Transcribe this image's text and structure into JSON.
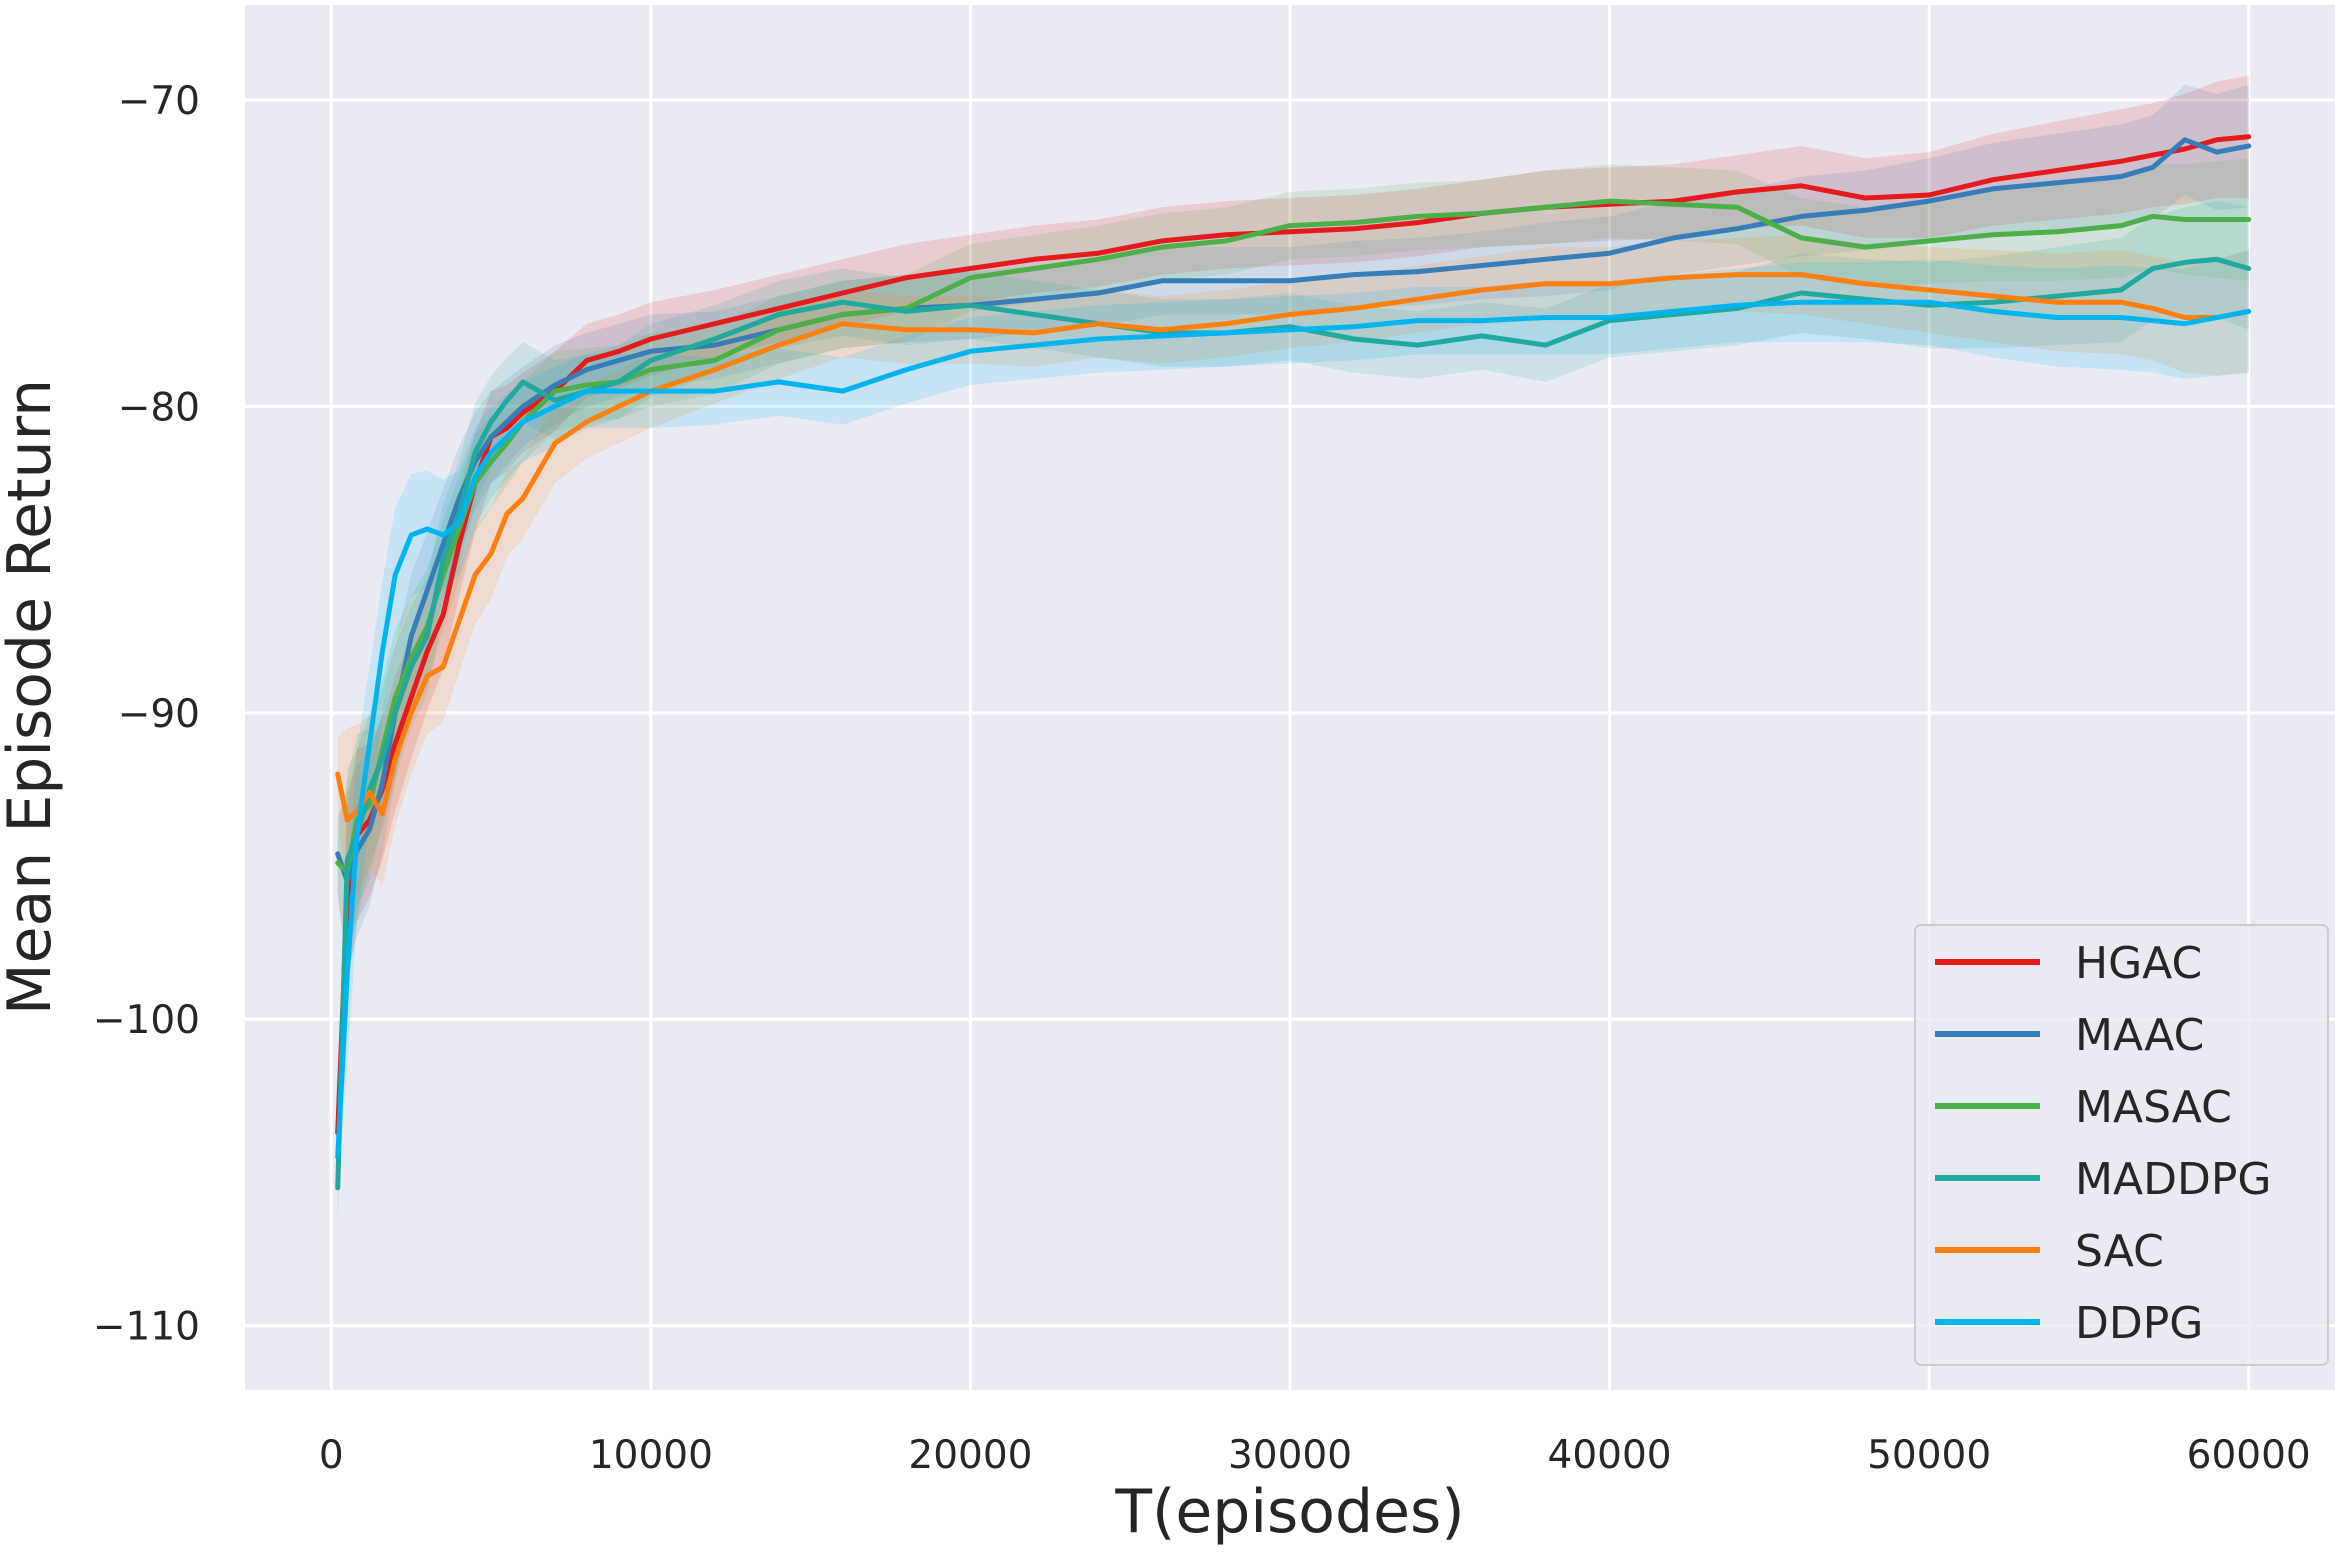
{
  "chart_data": {
    "type": "line",
    "title": "",
    "xlabel": "T(episodes)",
    "ylabel": "Mean Episode Return",
    "xlim": [
      -2700,
      62700
    ],
    "ylim": [
      -112.1,
      -66.9
    ],
    "xticks": [
      0,
      10000,
      20000,
      30000,
      40000,
      50000,
      60000
    ],
    "xtick_labels": [
      "0",
      "10000",
      "20000",
      "30000",
      "40000",
      "50000",
      "60000"
    ],
    "yticks": [
      -110,
      -100,
      -90,
      -80,
      -70
    ],
    "ytick_labels": [
      "−110",
      "−100",
      "−90",
      "−80",
      "−70"
    ],
    "grid": true,
    "background": "#eaeaf2",
    "legend_position": "bottom-right",
    "series": [
      {
        "name": "HGAC",
        "color": "#e41a1c",
        "x": [
          200,
          500,
          800,
          1200,
          1600,
          2000,
          2500,
          3000,
          3500,
          4000,
          4500,
          5000,
          5500,
          6000,
          7000,
          8000,
          9000,
          10000,
          12000,
          14000,
          16000,
          18000,
          20000,
          22000,
          24000,
          26000,
          28000,
          30000,
          32000,
          34000,
          36000,
          38000,
          40000,
          42000,
          44000,
          46000,
          48000,
          50000,
          52000,
          54000,
          56000,
          57000,
          58000,
          59000,
          60000
        ],
        "y": [
          -103.7,
          -96,
          -94,
          -93.5,
          -92.5,
          -91,
          -89.5,
          -88,
          -86.8,
          -84.5,
          -82.5,
          -81,
          -80.7,
          -80.2,
          -79.5,
          -78.5,
          -78.2,
          -77.8,
          -77.3,
          -76.8,
          -76.3,
          -75.8,
          -75.5,
          -75.2,
          -75,
          -74.6,
          -74.4,
          -74.3,
          -74.2,
          -74,
          -73.7,
          -73.5,
          -73.4,
          -73.3,
          -73,
          -72.8,
          -73.2,
          -73.1,
          -72.6,
          -72.3,
          -72,
          -71.8,
          -71.6,
          -71.3,
          -71.2
        ],
        "band": [
          1.2,
          3,
          2.8,
          2.5,
          2.3,
          2.2,
          2,
          1.9,
          1.8,
          1.7,
          1.6,
          1.5,
          1.4,
          1.3,
          1.3,
          1.2,
          1.2,
          1.2,
          1.1,
          1.1,
          1.1,
          1.1,
          1.1,
          1.1,
          1.1,
          1.1,
          1.1,
          1.1,
          1.1,
          1.1,
          1.1,
          1.2,
          1.2,
          1.2,
          1.2,
          1.3,
          1.3,
          1.4,
          1.5,
          1.6,
          1.7,
          1.7,
          1.8,
          1.9,
          2
        ]
      },
      {
        "name": "MAAC",
        "color": "#377eb8",
        "x": [
          200,
          500,
          800,
          1200,
          1600,
          2000,
          2500,
          3000,
          3500,
          4000,
          4500,
          5000,
          5500,
          6000,
          7000,
          8000,
          9000,
          10000,
          12000,
          14000,
          16000,
          18000,
          20000,
          22000,
          24000,
          26000,
          28000,
          30000,
          32000,
          34000,
          36000,
          38000,
          40000,
          42000,
          44000,
          46000,
          48000,
          50000,
          52000,
          54000,
          56000,
          57000,
          58000,
          59000,
          60000
        ],
        "y": [
          -94.6,
          -95.5,
          -94.5,
          -93.8,
          -92.3,
          -90,
          -87.5,
          -86,
          -84.5,
          -83,
          -81.8,
          -81,
          -80.5,
          -80,
          -79.3,
          -78.8,
          -78.5,
          -78.2,
          -78,
          -77.5,
          -77,
          -76.8,
          -76.7,
          -76.5,
          -76.3,
          -75.9,
          -75.9,
          -75.9,
          -75.7,
          -75.6,
          -75.4,
          -75.2,
          -75,
          -74.5,
          -74.2,
          -73.8,
          -73.6,
          -73.3,
          -72.9,
          -72.7,
          -72.5,
          -72.2,
          -71.3,
          -71.7,
          -71.5
        ],
        "band": [
          1.2,
          3,
          2.8,
          2.5,
          2.3,
          2.2,
          2,
          1.9,
          1.8,
          1.7,
          1.6,
          1.5,
          1.4,
          1.3,
          1.3,
          1.2,
          1.2,
          1.2,
          1.1,
          1.1,
          1.1,
          1.1,
          1.1,
          1.1,
          1.1,
          1.1,
          1.1,
          1.1,
          1.1,
          1.1,
          1.1,
          1.2,
          1.2,
          1.2,
          1.2,
          1.3,
          1.3,
          1.4,
          1.5,
          1.6,
          1.7,
          1.7,
          1.8,
          1.9,
          2
        ]
      },
      {
        "name": "MASAC",
        "color": "#4daf4a",
        "x": [
          200,
          500,
          800,
          1200,
          1600,
          2000,
          2500,
          3000,
          3500,
          4000,
          4500,
          5000,
          5500,
          6000,
          7000,
          8000,
          9000,
          10000,
          12000,
          14000,
          16000,
          18000,
          20000,
          22000,
          24000,
          26000,
          28000,
          30000,
          32000,
          34000,
          36000,
          38000,
          40000,
          42000,
          44000,
          46000,
          48000,
          50000,
          52000,
          54000,
          56000,
          57000,
          58000,
          59000,
          60000
        ],
        "y": [
          -94.9,
          -95.2,
          -93.5,
          -93,
          -91.2,
          -89.5,
          -88.2,
          -87.2,
          -85.5,
          -84,
          -82.5,
          -81.8,
          -81.2,
          -80.5,
          -79.5,
          -79.3,
          -79.2,
          -78.8,
          -78.5,
          -77.5,
          -77,
          -76.8,
          -75.8,
          -75.5,
          -75.2,
          -74.8,
          -74.6,
          -74.1,
          -74,
          -73.8,
          -73.7,
          -73.5,
          -73.3,
          -73.4,
          -73.5,
          -74.5,
          -74.8,
          -74.6,
          -74.4,
          -74.3,
          -74.1,
          -73.8,
          -73.9,
          -73.9,
          -73.9
        ],
        "band": [
          1.2,
          3,
          2.8,
          2.5,
          2.3,
          2.2,
          2,
          1.9,
          1.8,
          1.7,
          1.6,
          1.5,
          1.4,
          1.3,
          1.3,
          1.2,
          1.2,
          1.2,
          1.1,
          1.1,
          1.1,
          1.1,
          1.1,
          1.1,
          1.1,
          1.1,
          1.1,
          1.1,
          1.1,
          1.1,
          1.1,
          1.2,
          1.2,
          1.2,
          1.2,
          1.3,
          1.3,
          1.4,
          1.5,
          1.6,
          1.7,
          1.7,
          1.8,
          1.9,
          2
        ]
      },
      {
        "name": "MADDPG",
        "color": "#20a99c",
        "x": [
          200,
          500,
          800,
          1200,
          1600,
          2000,
          2500,
          3000,
          3500,
          4000,
          4500,
          5000,
          5500,
          6000,
          7000,
          8000,
          9000,
          10000,
          12000,
          14000,
          16000,
          18000,
          20000,
          22000,
          24000,
          26000,
          28000,
          30000,
          32000,
          34000,
          36000,
          38000,
          40000,
          42000,
          44000,
          46000,
          48000,
          50000,
          52000,
          54000,
          56000,
          57000,
          58000,
          59000,
          60000
        ],
        "y": [
          -105.5,
          -94.8,
          -94,
          -92.5,
          -91.5,
          -90,
          -88.5,
          -87.5,
          -85,
          -83.5,
          -81.5,
          -80.5,
          -79.8,
          -79.2,
          -79.8,
          -79.5,
          -79.2,
          -78.5,
          -77.8,
          -77,
          -76.6,
          -76.9,
          -76.7,
          -77,
          -77.3,
          -77.6,
          -77.6,
          -77.4,
          -77.8,
          -78,
          -77.7,
          -78,
          -77.2,
          -77,
          -76.8,
          -76.3,
          -76.5,
          -76.7,
          -76.6,
          -76.4,
          -76.2,
          -75.5,
          -75.3,
          -75.2,
          -75.5
        ],
        "band": [
          1.2,
          3,
          2.8,
          2.5,
          2.3,
          2.2,
          2,
          1.9,
          1.8,
          1.7,
          1.6,
          1.5,
          1.4,
          1.3,
          1.3,
          1.2,
          1.2,
          1.2,
          1.1,
          1.1,
          1.1,
          1.1,
          1.1,
          1.1,
          1.1,
          1.1,
          1.1,
          1.1,
          1.1,
          1.1,
          1.1,
          1.2,
          1.2,
          1.2,
          1.2,
          1.3,
          1.3,
          1.4,
          1.5,
          1.6,
          1.7,
          1.7,
          1.8,
          1.9,
          2
        ]
      },
      {
        "name": "SAC",
        "color": "#ff7f0e",
        "x": [
          200,
          500,
          800,
          1200,
          1600,
          2000,
          2500,
          3000,
          3500,
          4000,
          4500,
          5000,
          5500,
          6000,
          7000,
          8000,
          9000,
          10000,
          12000,
          14000,
          16000,
          18000,
          20000,
          22000,
          24000,
          26000,
          28000,
          30000,
          32000,
          34000,
          36000,
          38000,
          40000,
          42000,
          44000,
          46000,
          48000,
          50000,
          52000,
          54000,
          56000,
          57000,
          58000,
          59000,
          60000
        ],
        "y": [
          -92,
          -93.5,
          -93.2,
          -92.6,
          -93.3,
          -91.5,
          -90,
          -88.8,
          -88.5,
          -87,
          -85.5,
          -84.8,
          -83.5,
          -83,
          -81.2,
          -80.5,
          -80,
          -79.5,
          -78.8,
          -78,
          -77.3,
          -77.5,
          -77.5,
          -77.6,
          -77.3,
          -77.5,
          -77.3,
          -77,
          -76.8,
          -76.5,
          -76.2,
          -76,
          -76,
          -75.8,
          -75.7,
          -75.7,
          -76,
          -76.2,
          -76.4,
          -76.6,
          -76.6,
          -76.8,
          -77.1,
          -77.1,
          -76.9
        ],
        "band": [
          1.2,
          3,
          2.8,
          2.5,
          2.3,
          2.2,
          2,
          1.9,
          1.8,
          1.7,
          1.6,
          1.5,
          1.4,
          1.3,
          1.3,
          1.2,
          1.2,
          1.2,
          1.1,
          1.1,
          1.1,
          1.1,
          1.1,
          1.1,
          1.1,
          1.1,
          1.1,
          1.1,
          1.1,
          1.1,
          1.1,
          1.2,
          1.2,
          1.2,
          1.2,
          1.3,
          1.3,
          1.4,
          1.5,
          1.6,
          1.7,
          1.7,
          1.8,
          1.9,
          2
        ]
      },
      {
        "name": "DDPG",
        "color": "#00b4f0",
        "x": [
          200,
          500,
          800,
          1200,
          1600,
          2000,
          2500,
          3000,
          3500,
          4000,
          4500,
          5000,
          5500,
          6000,
          7000,
          8000,
          9000,
          10000,
          12000,
          14000,
          16000,
          18000,
          20000,
          22000,
          24000,
          26000,
          28000,
          30000,
          32000,
          34000,
          36000,
          38000,
          40000,
          42000,
          44000,
          46000,
          48000,
          50000,
          52000,
          54000,
          56000,
          57000,
          58000,
          59000,
          60000
        ],
        "y": [
          -104.5,
          -98.5,
          -94,
          -91,
          -88,
          -85.5,
          -84.2,
          -84,
          -84.2,
          -83.8,
          -82.3,
          -81.5,
          -81,
          -80.5,
          -80,
          -79.5,
          -79.5,
          -79.5,
          -79.5,
          -79.2,
          -79.5,
          -78.8,
          -78.2,
          -78,
          -77.8,
          -77.7,
          -77.6,
          -77.5,
          -77.4,
          -77.2,
          -77.2,
          -77.1,
          -77.1,
          -76.9,
          -76.7,
          -76.6,
          -76.6,
          -76.6,
          -76.9,
          -77.1,
          -77.1,
          -77.2,
          -77.3,
          -77.1,
          -76.9
        ],
        "band": [
          1.2,
          3,
          2.8,
          2.5,
          2.3,
          2.2,
          2,
          1.9,
          1.8,
          1.7,
          1.6,
          1.5,
          1.4,
          1.3,
          1.3,
          1.2,
          1.2,
          1.2,
          1.1,
          1.1,
          1.1,
          1.1,
          1.1,
          1.1,
          1.1,
          1.1,
          1.1,
          1.1,
          1.1,
          1.1,
          1.1,
          1.2,
          1.2,
          1.2,
          1.2,
          1.3,
          1.3,
          1.4,
          1.5,
          1.6,
          1.7,
          1.7,
          1.8,
          1.9,
          2
        ]
      }
    ]
  }
}
